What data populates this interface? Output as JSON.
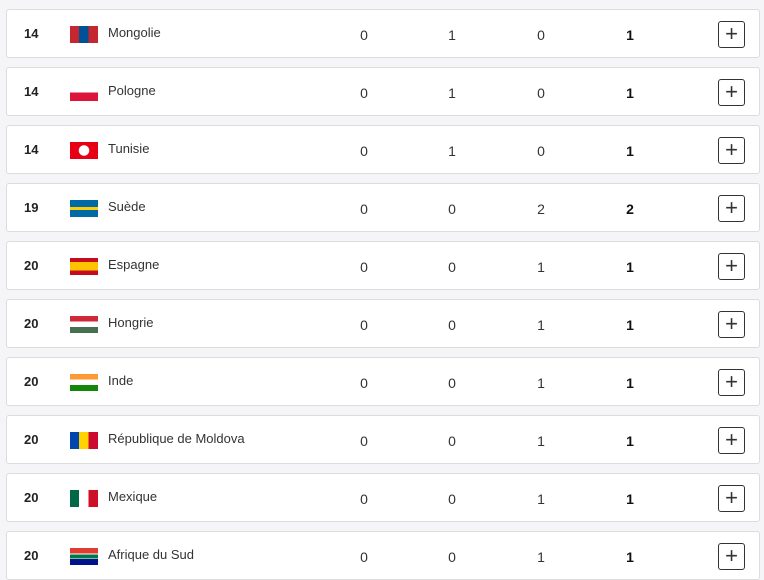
{
  "rows": [
    {
      "rank": "14",
      "country": "Mongolie",
      "flag": "mongolia-flag",
      "gold": "0",
      "silver": "1",
      "bronze": "0",
      "total": "1"
    },
    {
      "rank": "14",
      "country": "Pologne",
      "flag": "poland-flag",
      "gold": "0",
      "silver": "1",
      "bronze": "0",
      "total": "1"
    },
    {
      "rank": "14",
      "country": "Tunisie",
      "flag": "tunisia-flag",
      "gold": "0",
      "silver": "1",
      "bronze": "0",
      "total": "1"
    },
    {
      "rank": "19",
      "country": "Suède",
      "flag": "sweden-flag",
      "gold": "0",
      "silver": "0",
      "bronze": "2",
      "total": "2"
    },
    {
      "rank": "20",
      "country": "Espagne",
      "flag": "spain-flag",
      "gold": "0",
      "silver": "0",
      "bronze": "1",
      "total": "1"
    },
    {
      "rank": "20",
      "country": "Hongrie",
      "flag": "hungary-flag",
      "gold": "0",
      "silver": "0",
      "bronze": "1",
      "total": "1"
    },
    {
      "rank": "20",
      "country": "Inde",
      "flag": "india-flag",
      "gold": "0",
      "silver": "0",
      "bronze": "1",
      "total": "1"
    },
    {
      "rank": "20",
      "country": "République de Moldova",
      "flag": "moldova-flag",
      "gold": "0",
      "silver": "0",
      "bronze": "1",
      "total": "1"
    },
    {
      "rank": "20",
      "country": "Mexique",
      "flag": "mexico-flag",
      "gold": "0",
      "silver": "0",
      "bronze": "1",
      "total": "1"
    },
    {
      "rank": "20",
      "country": "Afrique du Sud",
      "flag": "south-africa-flag",
      "gold": "0",
      "silver": "0",
      "bronze": "1",
      "total": "1"
    }
  ],
  "expand_icon": "+"
}
